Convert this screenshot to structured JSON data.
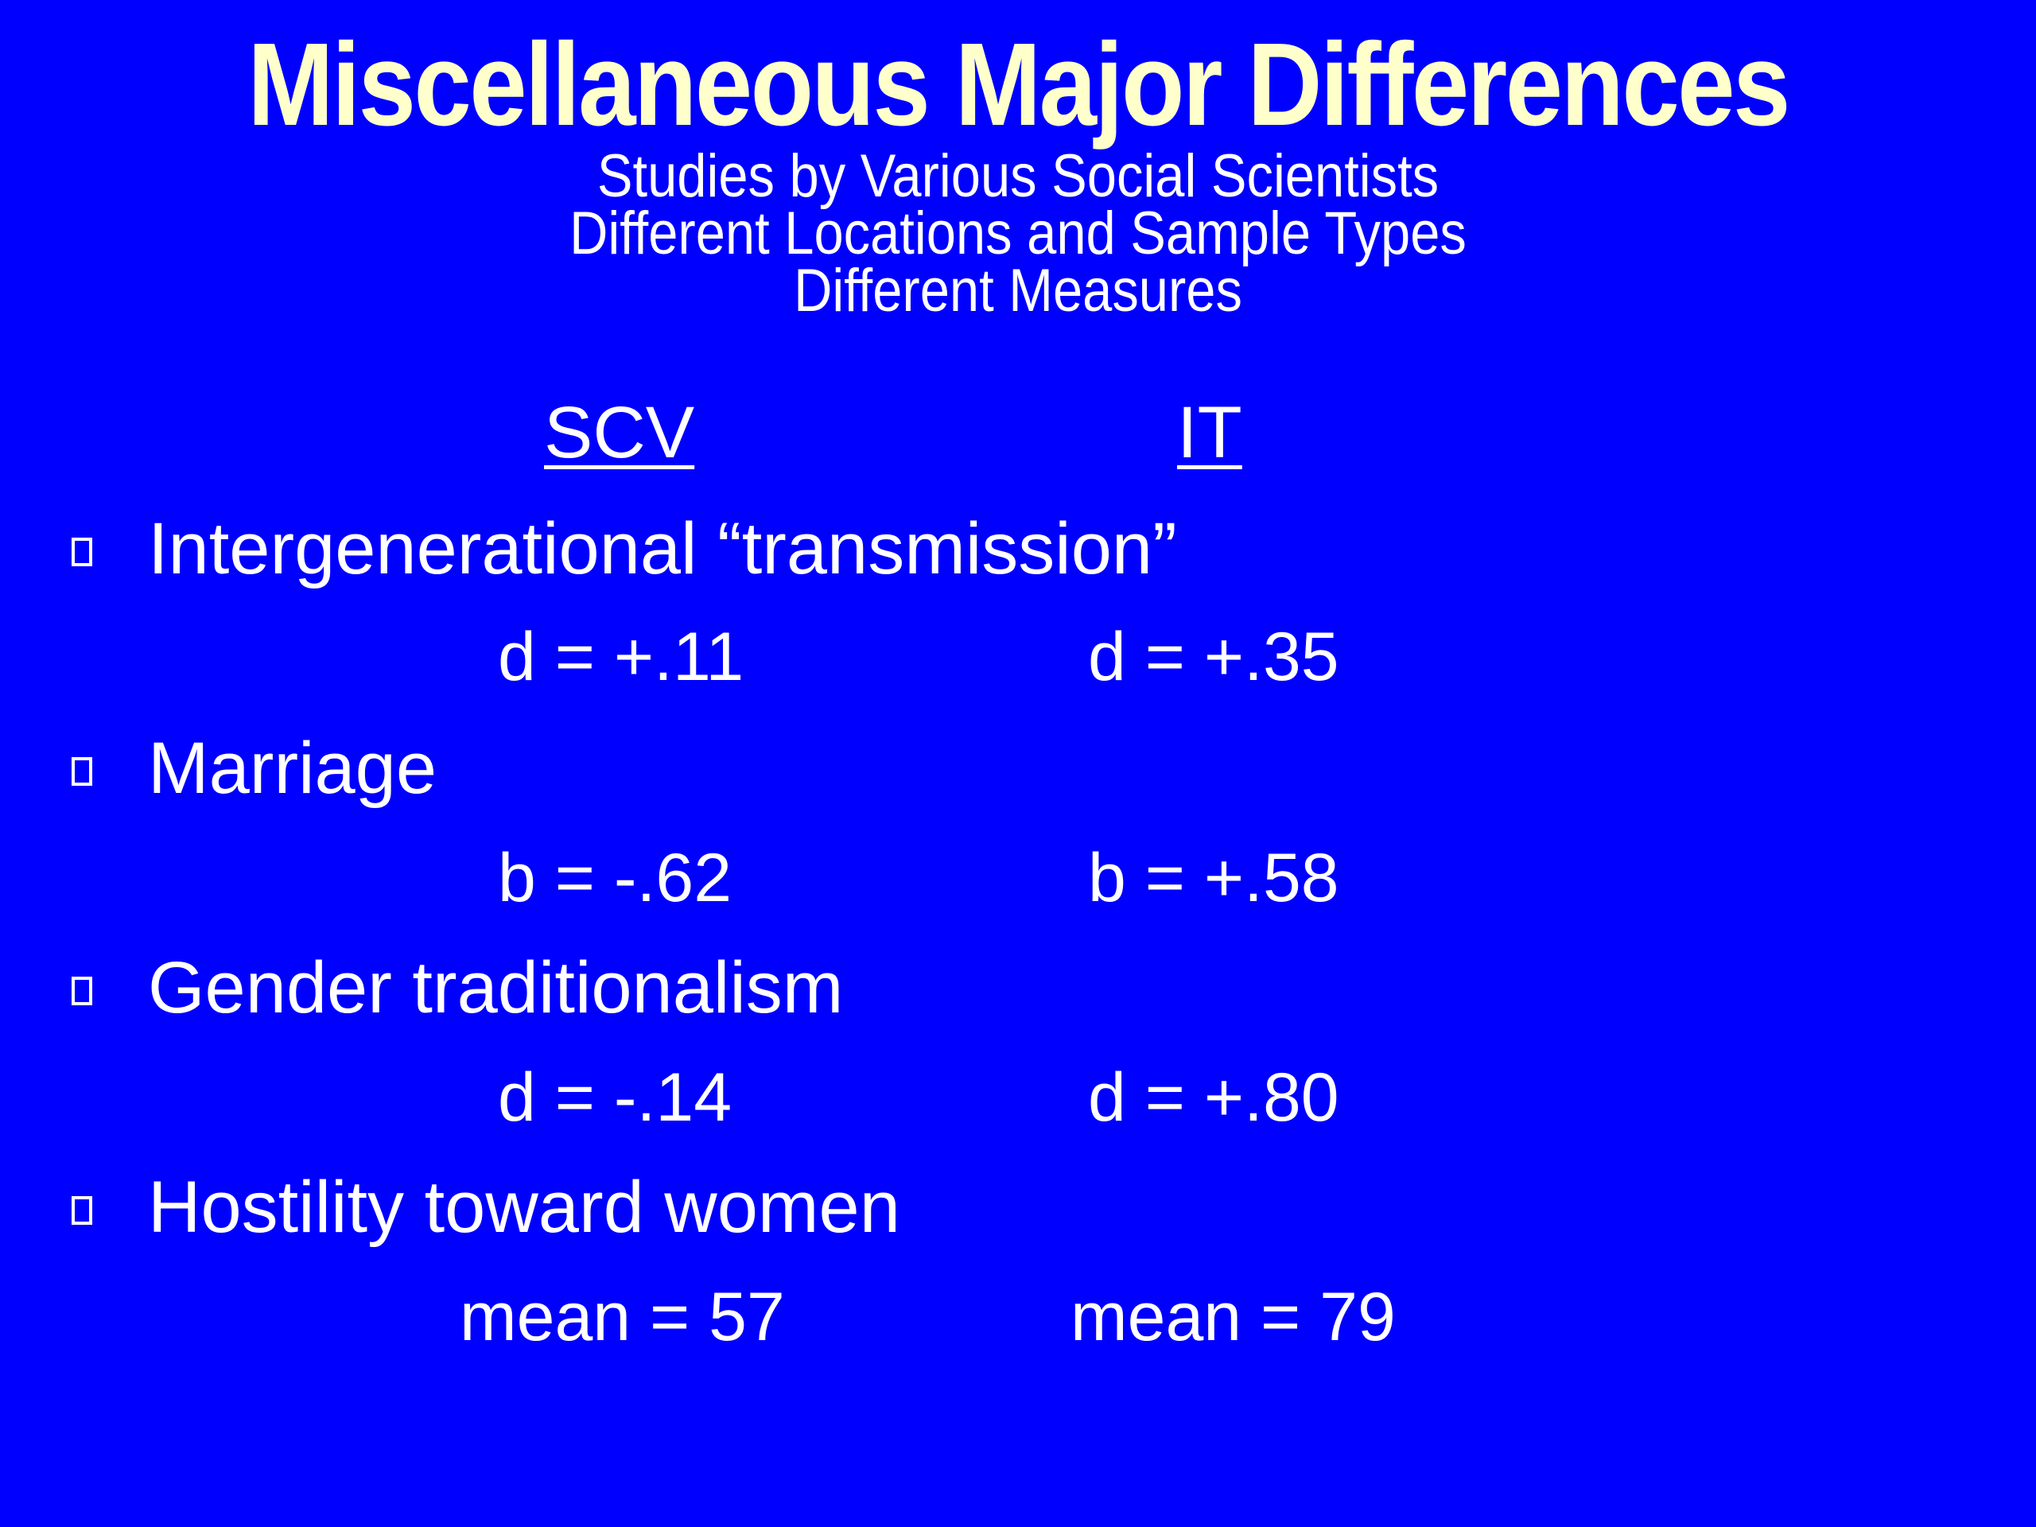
{
  "slide": {
    "title": "Miscellaneous Major Differences",
    "subtitle_lines": [
      "Studies by Various Social Scientists",
      "Different Locations and Sample Types",
      "Different Measures"
    ],
    "column_headers": {
      "scv": "SCV",
      "it": "IT"
    },
    "items": [
      {
        "label": "Intergenerational “transmission”",
        "scv": "d = +.11",
        "it": "d = +.35"
      },
      {
        "label": "Marriage",
        "scv": "b = -.62",
        "it": "b = +.58"
      },
      {
        "label": "Gender traditionalism",
        "scv": "d = -.14",
        "it": "d = +.80"
      },
      {
        "label": "Hostility toward women",
        "scv": "mean = 57",
        "it": "mean = 79"
      }
    ]
  },
  "colors": {
    "background": "#0000ff",
    "title": "#ffffcc",
    "text": "#ffffff"
  },
  "icons": {
    "bullet": "hollow-square-bullet-icon"
  }
}
